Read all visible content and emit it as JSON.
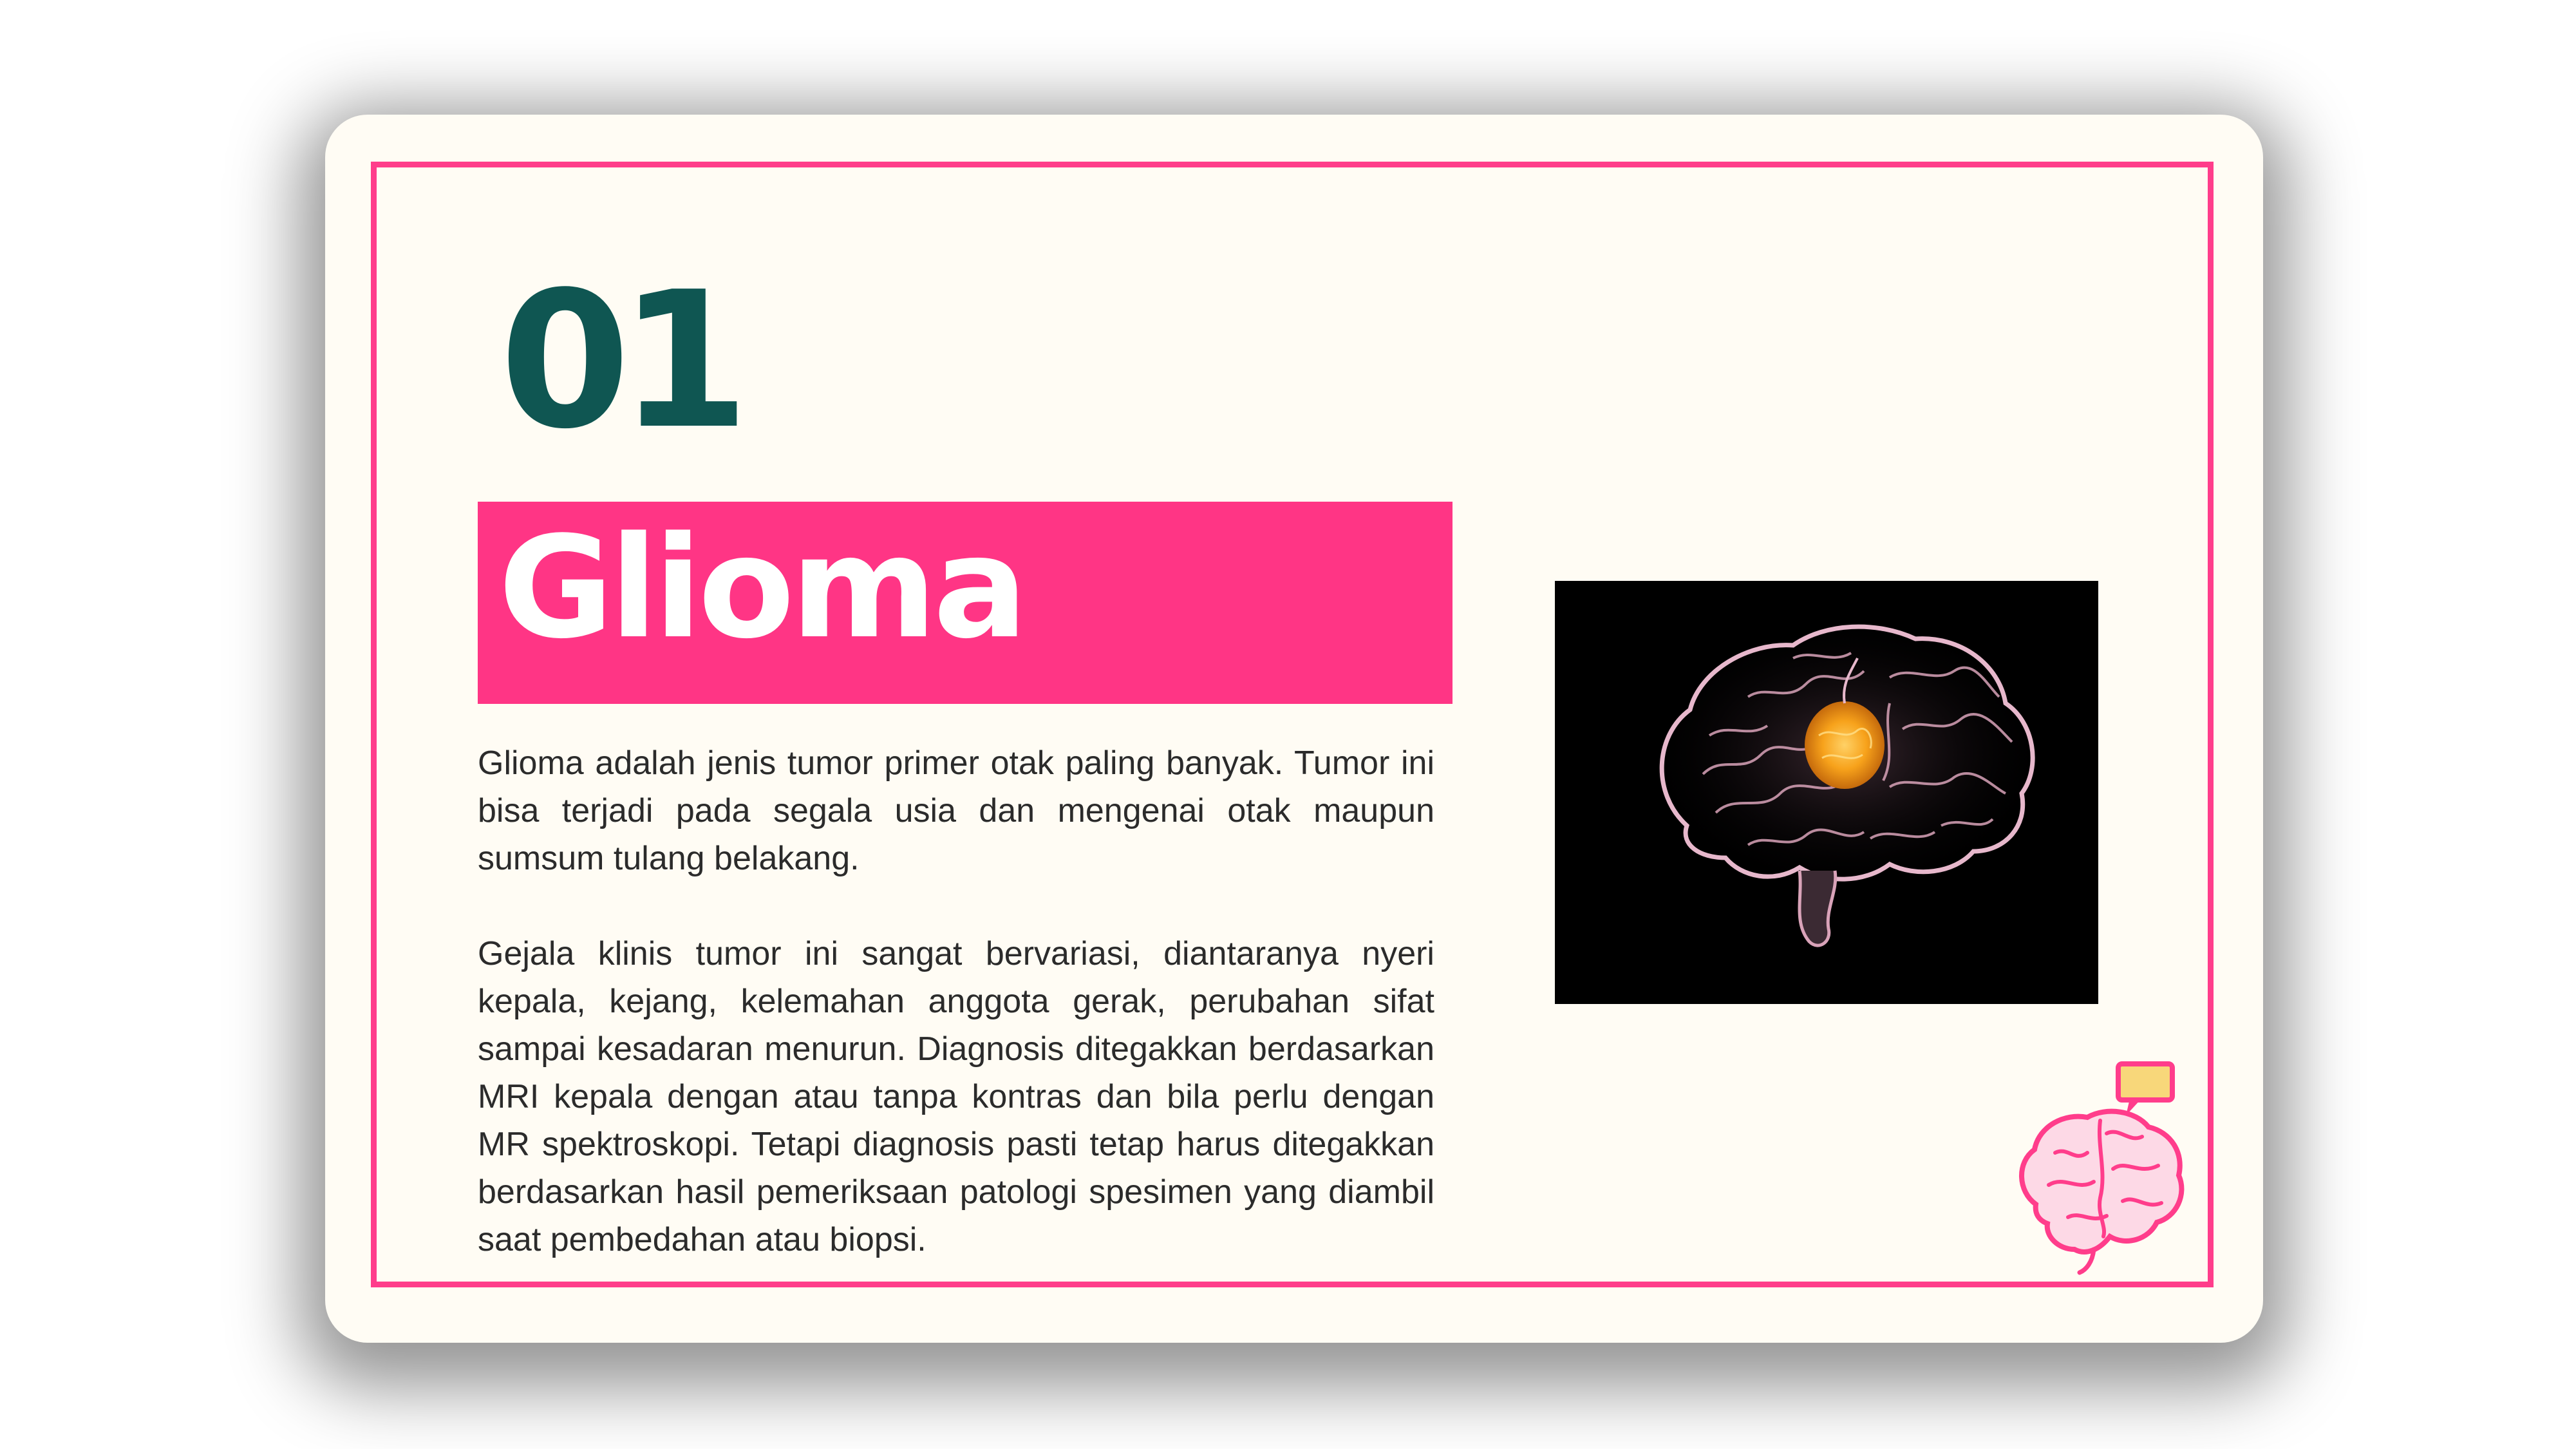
{
  "slide": {
    "number": "01",
    "title": "Glioma",
    "paragraphs": [
      "Glioma adalah jenis tumor primer otak paling banyak. Tumor ini bisa terjadi pada segala usia dan mengenai otak maupun sumsum tulang belakang.",
      "Gejala klinis tumor ini sangat bervariasi, diantaranya nyeri kepala, kejang, kelemahan anggota gerak, perubahan sifat sampai kesadaran menurun. Diagnosis ditegakkan berdasarkan MRI kepala dengan atau tanpa kontras dan bila perlu dengan MR spektroskopi. Tetapi diagnosis pasti tetap harus ditegakkan berdasarkan hasil pemeriksaan patologi spesimen yang diambil saat pembedahan atau biopsi."
    ]
  },
  "image": {
    "icon": "brain-tumor-illustration"
  },
  "decoration": {
    "icon": "brain-icon"
  },
  "colors": {
    "accent": "#ff3585",
    "number": "#0f5652",
    "background": "#fffcf4"
  }
}
